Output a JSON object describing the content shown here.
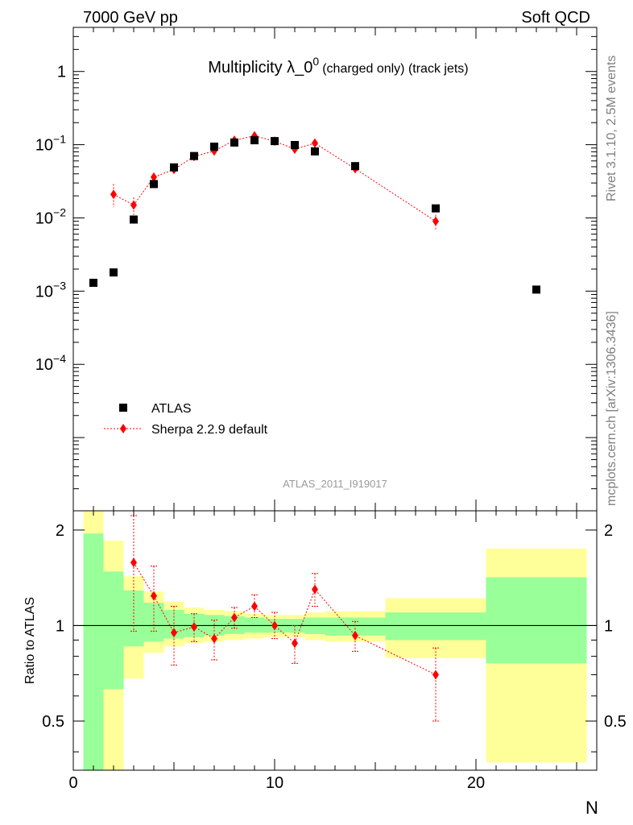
{
  "header": {
    "left": "7000 GeV pp",
    "right": "Soft QCD"
  },
  "side_labels": {
    "rivet": "Rivet 3.1.10,  2.5M events",
    "source": "mcplots.cern.ch [arXiv:1306.3436]"
  },
  "chart_data": {
    "type": "scatter",
    "title_main": "Multiplicity λ_0",
    "title_sup": "0",
    "title_sub": "(charged only) (track jets)",
    "analysis_id": "ATLAS_2011_I919017",
    "xlabel": "N",
    "ylabel_ratio": "Ratio to ATLAS",
    "xlim": [
      0,
      26
    ],
    "ylim_main": [
      1e-06,
      4
    ],
    "ylim_ratio": [
      0.35,
      2.3
    ],
    "yscale_main": "log",
    "yscale_ratio": "log",
    "x_ticks": [
      0,
      10,
      20
    ],
    "x_tick_labels": [
      "0",
      "10",
      "20"
    ],
    "main_ticks": [
      {
        "label": "1",
        "sup": "",
        "value": 1
      },
      {
        "label": "10",
        "sup": "−1",
        "value": 0.1
      },
      {
        "label": "10",
        "sup": "−2",
        "value": 0.01
      },
      {
        "label": "10",
        "sup": "−3",
        "value": 0.001
      },
      {
        "label": "10",
        "sup": "−4",
        "value": 0.0001
      }
    ],
    "ratio_ticks": [
      {
        "label": "2",
        "value": 2
      },
      {
        "label": "1",
        "value": 1
      },
      {
        "label": "0.5",
        "value": 0.5
      }
    ],
    "legend": [
      {
        "label": "ATLAS",
        "marker": "square",
        "color": "#000000"
      },
      {
        "label": "Sherpa 2.2.9 default",
        "marker": "diamond",
        "color": "#ff0000"
      }
    ],
    "legend_position": "lower-left",
    "series": [
      {
        "name": "ATLAS",
        "color": "#000000",
        "x": [
          1,
          2,
          3,
          4,
          5,
          6,
          7,
          8,
          9,
          10,
          11,
          12,
          14,
          18,
          23
        ],
        "y": [
          0.0013,
          0.0018,
          0.0095,
          0.029,
          0.049,
          0.07,
          0.094,
          0.107,
          0.115,
          0.112,
          0.099,
          0.081,
          0.051,
          0.0135,
          0.00105
        ]
      },
      {
        "name": "Sherpa 2.2.9 default",
        "color": "#ff0000",
        "x": [
          2,
          3,
          4,
          5,
          6,
          7,
          8,
          9,
          10,
          11,
          12,
          14,
          18
        ],
        "y": [
          0.021,
          0.015,
          0.036,
          0.046,
          0.069,
          0.082,
          0.115,
          0.132,
          0.112,
          0.087,
          0.105,
          0.047,
          0.009
        ],
        "yerr_low": [
          0.007,
          0.004,
          0.005,
          0.006,
          0.007,
          0.008,
          0.008,
          0.009,
          0.008,
          0.009,
          0.01,
          0.004,
          0.002
        ],
        "yerr_high": [
          0.008,
          0.004,
          0.005,
          0.006,
          0.007,
          0.008,
          0.008,
          0.009,
          0.008,
          0.009,
          0.01,
          0.004,
          0.002
        ]
      }
    ],
    "ratio_bands": [
      {
        "x_lo": 0.5,
        "x_hi": 1.5,
        "green": [
          0.25,
          1.95
        ],
        "yellow": [
          0.25,
          2.4
        ]
      },
      {
        "x_lo": 1.5,
        "x_hi": 2.5,
        "green": [
          0.63,
          1.48
        ],
        "yellow": [
          0.33,
          1.85
        ]
      },
      {
        "x_lo": 2.5,
        "x_hi": 3.5,
        "green": [
          0.86,
          1.29
        ],
        "yellow": [
          0.68,
          1.43
        ]
      },
      {
        "x_lo": 3.5,
        "x_hi": 4.5,
        "green": [
          0.89,
          1.18
        ],
        "yellow": [
          0.82,
          1.28
        ]
      },
      {
        "x_lo": 4.5,
        "x_hi": 5.5,
        "green": [
          0.91,
          1.12
        ],
        "yellow": [
          0.86,
          1.19
        ]
      },
      {
        "x_lo": 5.5,
        "x_hi": 6.5,
        "green": [
          0.92,
          1.09
        ],
        "yellow": [
          0.88,
          1.14
        ]
      },
      {
        "x_lo": 6.5,
        "x_hi": 7.5,
        "green": [
          0.93,
          1.08
        ],
        "yellow": [
          0.89,
          1.12
        ]
      },
      {
        "x_lo": 7.5,
        "x_hi": 8.5,
        "green": [
          0.94,
          1.07
        ],
        "yellow": [
          0.9,
          1.11
        ]
      },
      {
        "x_lo": 8.5,
        "x_hi": 9.5,
        "green": [
          0.95,
          1.06
        ],
        "yellow": [
          0.91,
          1.09
        ]
      },
      {
        "x_lo": 9.5,
        "x_hi": 10.5,
        "green": [
          0.95,
          1.05
        ],
        "yellow": [
          0.92,
          1.08
        ]
      },
      {
        "x_lo": 10.5,
        "x_hi": 11.5,
        "green": [
          0.95,
          1.05
        ],
        "yellow": [
          0.92,
          1.08
        ]
      },
      {
        "x_lo": 11.5,
        "x_hi": 12.5,
        "green": [
          0.94,
          1.06
        ],
        "yellow": [
          0.9,
          1.1
        ]
      },
      {
        "x_lo": 12.5,
        "x_hi": 15.5,
        "green": [
          0.93,
          1.06
        ],
        "yellow": [
          0.89,
          1.11
        ]
      },
      {
        "x_lo": 15.5,
        "x_hi": 20.5,
        "green": [
          0.9,
          1.1
        ],
        "yellow": [
          0.79,
          1.22
        ]
      },
      {
        "x_lo": 20.5,
        "x_hi": 25.5,
        "green": [
          0.76,
          1.42
        ],
        "yellow": [
          0.37,
          1.75
        ]
      }
    ],
    "ratio_points": {
      "x": [
        3,
        4,
        5,
        6,
        7,
        8,
        9,
        10,
        11,
        12,
        14,
        18
      ],
      "y": [
        1.58,
        1.24,
        0.95,
        0.99,
        0.91,
        1.06,
        1.15,
        1.0,
        0.88,
        1.3,
        0.93,
        0.7
      ],
      "err_low": [
        0.62,
        0.28,
        0.2,
        0.1,
        0.13,
        0.08,
        0.09,
        0.09,
        0.12,
        0.15,
        0.1,
        0.2
      ],
      "err_high": [
        0.64,
        0.3,
        0.2,
        0.1,
        0.13,
        0.08,
        0.1,
        0.1,
        0.12,
        0.16,
        0.1,
        0.15
      ]
    }
  }
}
